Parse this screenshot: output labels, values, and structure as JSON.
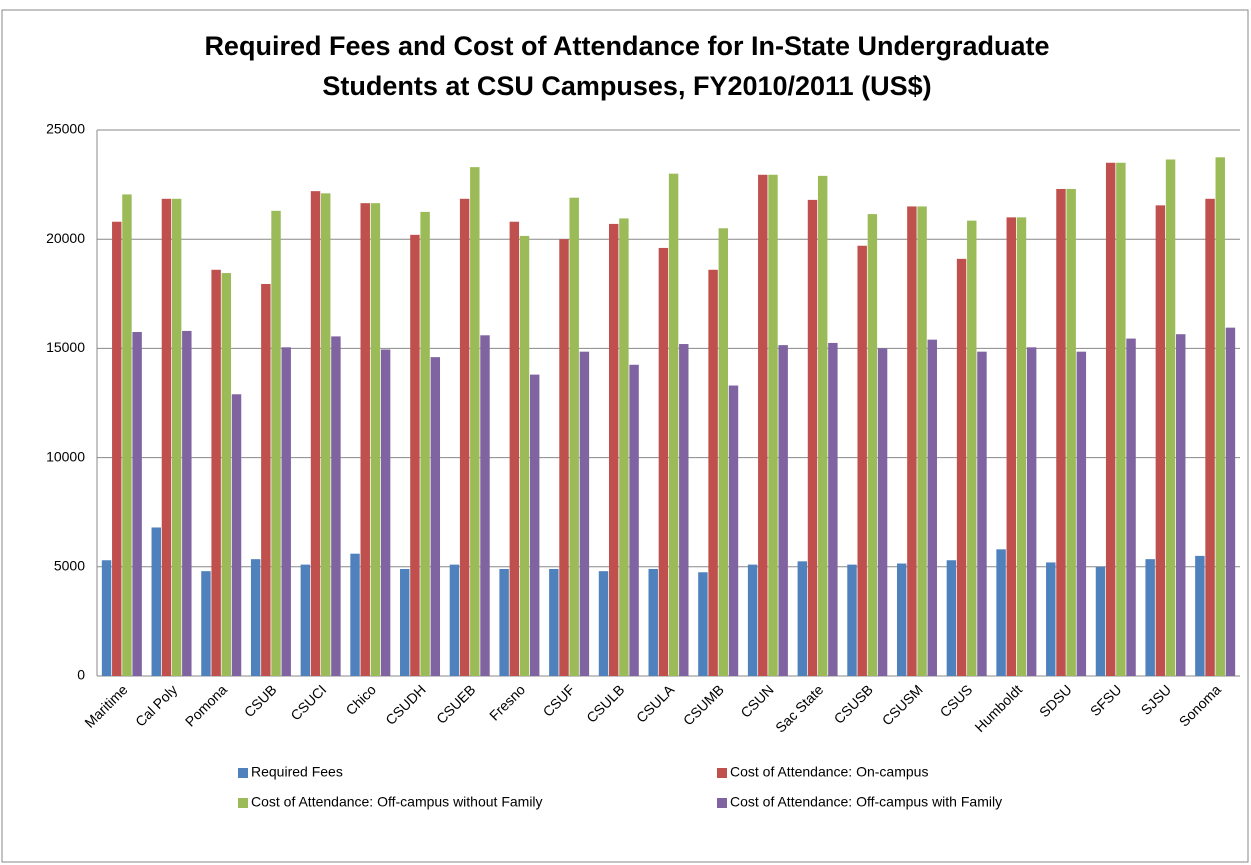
{
  "chart_data": {
    "type": "bar",
    "title": [
      "Required Fees and Cost of Attendance for In-State Undergraduate",
      "Students at CSU Campuses, FY2010/2011 (US$)"
    ],
    "categories": [
      "Maritime",
      "Cal Poly",
      "Pomona",
      "CSUB",
      "CSUCI",
      "Chico",
      "CSUDH",
      "CSUEB",
      "Fresno",
      "CSUF",
      "CSULB",
      "CSULA",
      "CSUMB",
      "CSUN",
      "Sac State",
      "CSUSB",
      "CSUSM",
      "CSUS",
      "Humboldt",
      "SDSU",
      "SFSU",
      "SJSU",
      "Sonoma"
    ],
    "series": [
      {
        "name": "Required Fees",
        "color": "#4f81bd",
        "values": [
          5300,
          6800,
          4800,
          5350,
          5100,
          5600,
          4900,
          5100,
          4900,
          4900,
          4800,
          4900,
          4750,
          5100,
          5250,
          5100,
          5150,
          5300,
          5800,
          5200,
          5000,
          5350,
          5500
        ]
      },
      {
        "name": "Cost of Attendance: On-campus",
        "color": "#c0504d",
        "values": [
          20800,
          21850,
          18600,
          17950,
          22200,
          21650,
          20200,
          21850,
          20800,
          20000,
          20700,
          19600,
          18600,
          22950,
          21800,
          19700,
          21500,
          19100,
          21000,
          22300,
          23500,
          21550,
          21850
        ]
      },
      {
        "name": "Cost of Attendance: Off-campus without Family",
        "color": "#9bbb59",
        "values": [
          22050,
          21850,
          18450,
          21300,
          22100,
          21650,
          21250,
          23300,
          20150,
          21900,
          20950,
          23000,
          20500,
          22950,
          22900,
          21150,
          21500,
          20850,
          21000,
          22300,
          23500,
          23650,
          23750
        ]
      },
      {
        "name": "Cost of Attendance: Off-campus with Family",
        "color": "#8064a2",
        "values": [
          15750,
          15800,
          12900,
          15050,
          15550,
          14950,
          14600,
          15600,
          13800,
          14850,
          14250,
          15200,
          13300,
          15150,
          15250,
          15000,
          15400,
          14850,
          15050,
          14850,
          15450,
          15650,
          15950
        ]
      }
    ],
    "ylim": [
      0,
      25000
    ],
    "yticks": [
      0,
      5000,
      10000,
      15000,
      20000,
      25000
    ],
    "grid": true
  }
}
